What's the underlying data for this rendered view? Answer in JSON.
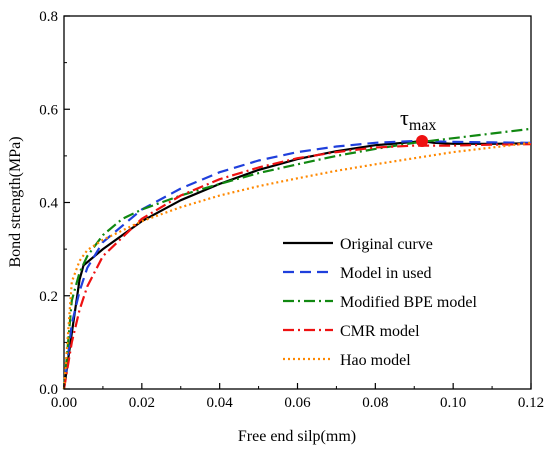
{
  "chart_data": {
    "type": "line",
    "xlabel": "Free end silp(mm)",
    "ylabel": "Bond strength(MPa)",
    "xlim": [
      0,
      0.12
    ],
    "ylim": [
      0,
      0.8
    ],
    "xticks": [
      "0.00",
      "0.02",
      "0.04",
      "0.06",
      "0.08",
      "0.10",
      "0.12"
    ],
    "yticks": [
      "0.0",
      "0.2",
      "0.4",
      "0.6",
      "0.8"
    ],
    "grid": false,
    "legend_position": "lower-right",
    "annotation": {
      "base": "τ",
      "sub": "max",
      "x": 0.092,
      "y": 0.532
    },
    "series": [
      {
        "name": "Original curve",
        "color": "#000000",
        "dash": "solid",
        "x": [
          0,
          0.002,
          0.004,
          0.005,
          0.01,
          0.02,
          0.03,
          0.04,
          0.05,
          0.06,
          0.07,
          0.08,
          0.09,
          0.092,
          0.095,
          0.1,
          0.11,
          0.12
        ],
        "y": [
          0,
          0.12,
          0.235,
          0.265,
          0.3,
          0.36,
          0.405,
          0.44,
          0.47,
          0.493,
          0.51,
          0.523,
          0.53,
          0.532,
          0.528,
          0.526,
          0.526,
          0.527
        ]
      },
      {
        "name": "Model in used",
        "color": "#1f3fdc",
        "dash": "dashed",
        "x": [
          0,
          0.002,
          0.004,
          0.006,
          0.01,
          0.02,
          0.03,
          0.04,
          0.05,
          0.06,
          0.07,
          0.08,
          0.09,
          0.092,
          0.1,
          0.11,
          0.12
        ],
        "y": [
          0,
          0.14,
          0.21,
          0.26,
          0.315,
          0.385,
          0.43,
          0.465,
          0.49,
          0.508,
          0.52,
          0.528,
          0.532,
          0.532,
          0.53,
          0.529,
          0.528
        ]
      },
      {
        "name": "Modified BPE model",
        "color": "#118811",
        "dash": "dashdot",
        "x": [
          0,
          0.002,
          0.004,
          0.006,
          0.01,
          0.015,
          0.02,
          0.03,
          0.04,
          0.05,
          0.06,
          0.07,
          0.08,
          0.09,
          0.1,
          0.11,
          0.12
        ],
        "y": [
          0,
          0.19,
          0.25,
          0.285,
          0.33,
          0.365,
          0.385,
          0.415,
          0.44,
          0.463,
          0.482,
          0.5,
          0.515,
          0.528,
          0.538,
          0.548,
          0.558
        ]
      },
      {
        "name": "CMR model",
        "color": "#ee1111",
        "dash": "dashdot",
        "x": [
          0,
          0.002,
          0.004,
          0.006,
          0.01,
          0.02,
          0.03,
          0.04,
          0.05,
          0.06,
          0.07,
          0.08,
          0.09,
          0.092,
          0.1,
          0.11,
          0.12
        ],
        "y": [
          0,
          0.1,
          0.17,
          0.22,
          0.285,
          0.365,
          0.415,
          0.45,
          0.475,
          0.495,
          0.508,
          0.518,
          0.522,
          0.522,
          0.522,
          0.524,
          0.525
        ]
      },
      {
        "name": "Hao model",
        "color": "#ff8800",
        "dash": "dotted",
        "x": [
          0,
          0.002,
          0.004,
          0.006,
          0.01,
          0.02,
          0.03,
          0.04,
          0.05,
          0.06,
          0.07,
          0.08,
          0.09,
          0.1,
          0.11,
          0.12
        ],
        "y": [
          0,
          0.23,
          0.275,
          0.298,
          0.32,
          0.36,
          0.39,
          0.415,
          0.435,
          0.452,
          0.468,
          0.482,
          0.495,
          0.508,
          0.518,
          0.528
        ]
      }
    ]
  }
}
